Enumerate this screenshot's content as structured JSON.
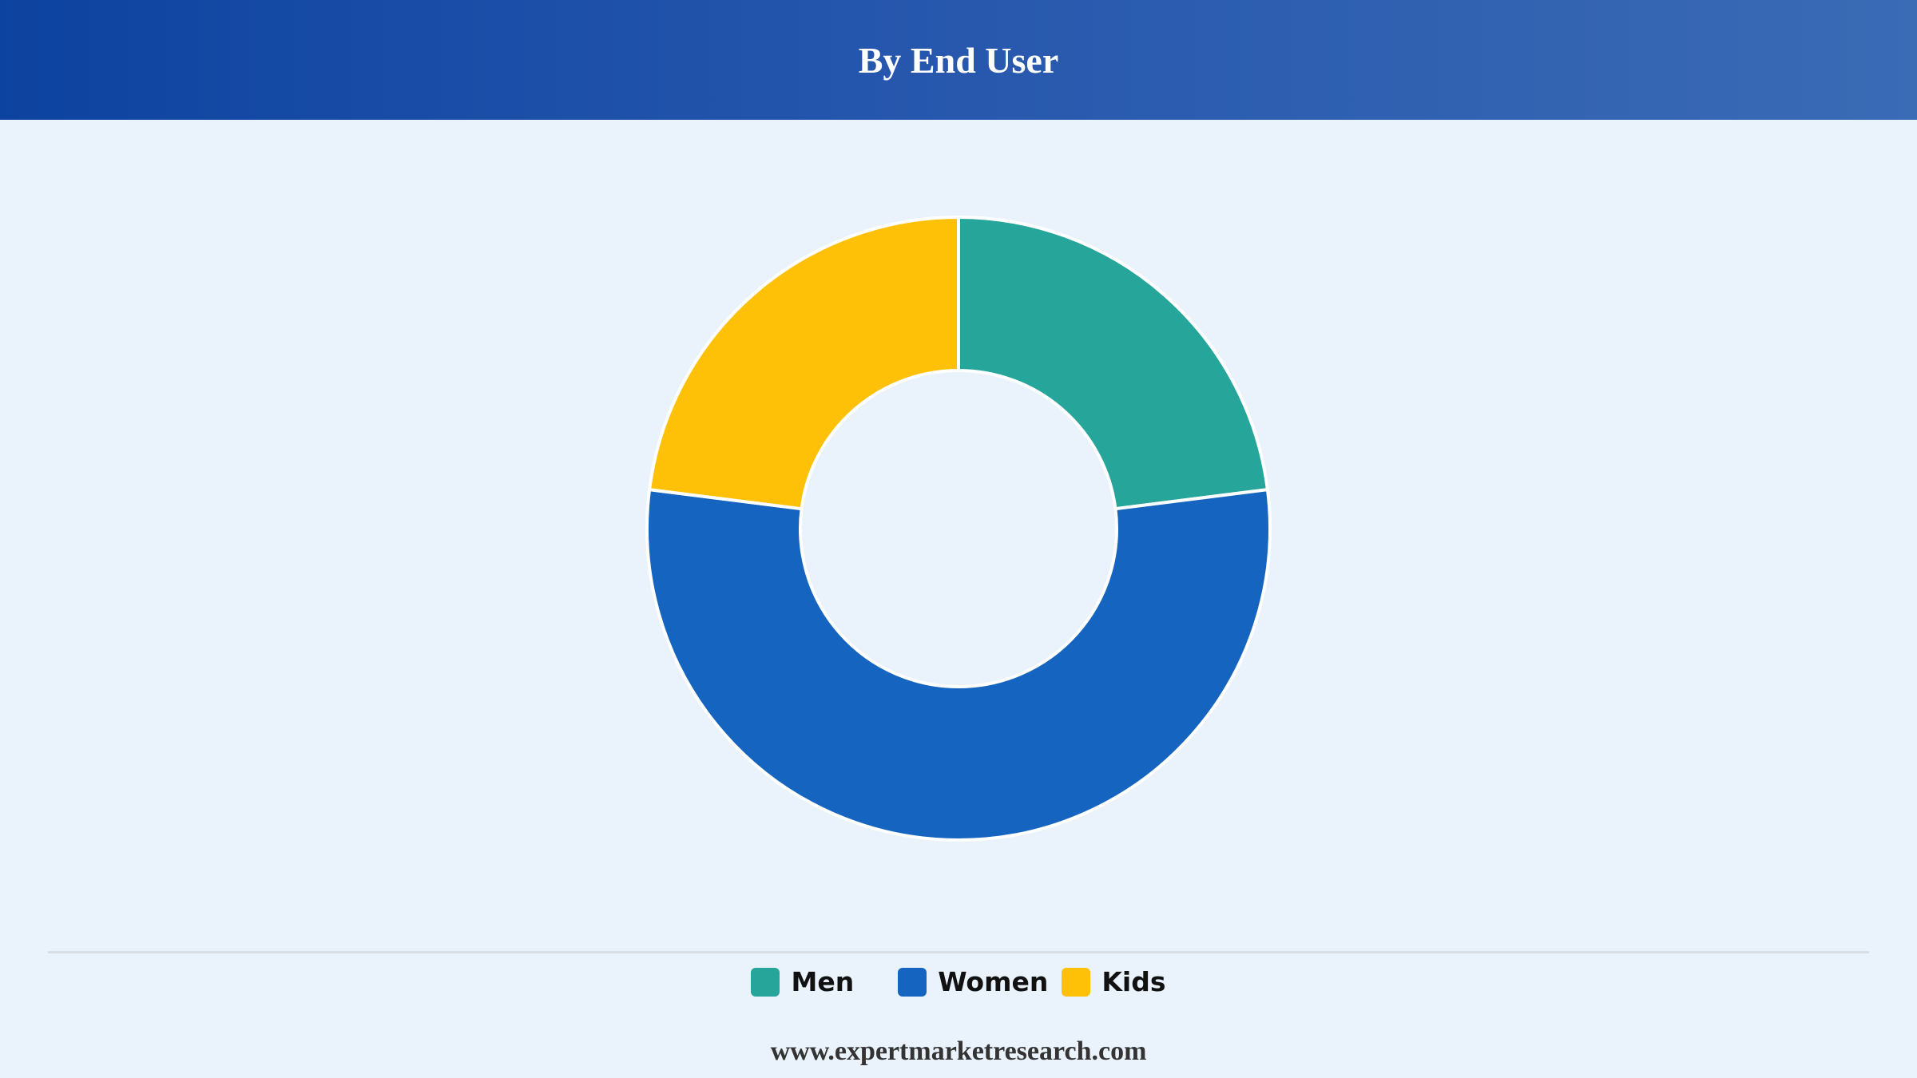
{
  "header": {
    "title": "By End User"
  },
  "chart_data": {
    "type": "pie",
    "variant": "donut",
    "title": "By End User",
    "categories": [
      "Men",
      "Women",
      "Kids"
    ],
    "values": [
      23,
      54,
      23
    ],
    "colors": [
      "#26a69a",
      "#1565c0",
      "#ffc107"
    ],
    "legend_position": "bottom"
  },
  "legend": {
    "items": [
      {
        "label": "Men",
        "color": "#26a69a"
      },
      {
        "label": "Women",
        "color": "#1565c0"
      },
      {
        "label": "Kids",
        "color": "#ffc107"
      }
    ]
  },
  "footer": {
    "text": "www.expertmarketresearch.com"
  }
}
